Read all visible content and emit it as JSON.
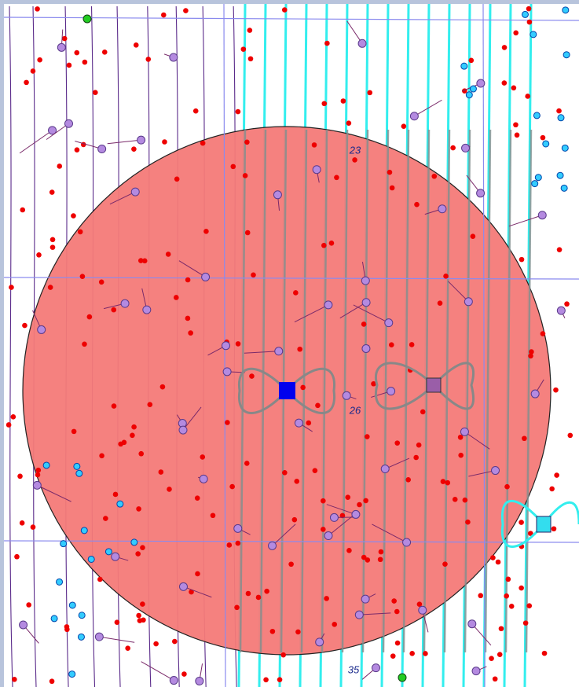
{
  "map": {
    "section_labels": [
      "23",
      "26",
      "35"
    ]
  }
}
